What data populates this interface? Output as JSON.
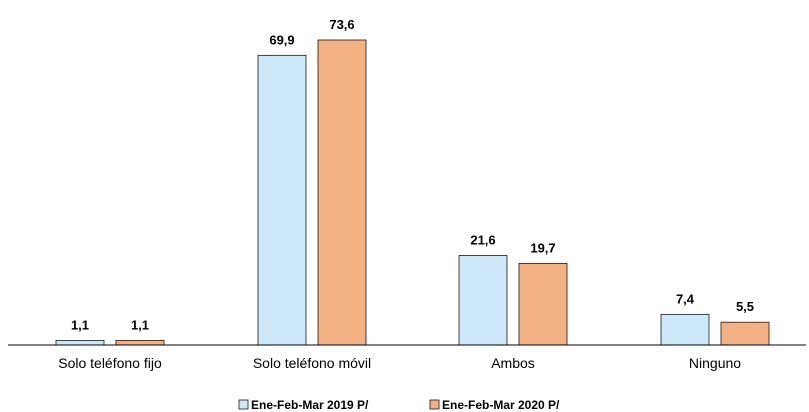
{
  "chart_data": {
    "type": "bar",
    "categories": [
      "Solo teléfono fijo",
      "Solo teléfono móvil",
      "Ambos",
      "Ninguno"
    ],
    "series": [
      {
        "name": "Ene-Feb-Mar 2019 P/",
        "values": [
          1.1,
          69.9,
          21.6,
          7.4
        ],
        "labels": [
          "1,1",
          "69,9",
          "21,6",
          "7,4"
        ],
        "color": "#CCE8F8"
      },
      {
        "name": "Ene-Feb-Mar 2020 P/",
        "values": [
          1.1,
          73.6,
          19.7,
          5.5
        ],
        "labels": [
          "1,1",
          "73,6",
          "19,7",
          "5,5"
        ],
        "color": "#F4B183"
      }
    ],
    "ylim": [
      0,
      80
    ],
    "grid": false,
    "legend_position": "bottom"
  }
}
